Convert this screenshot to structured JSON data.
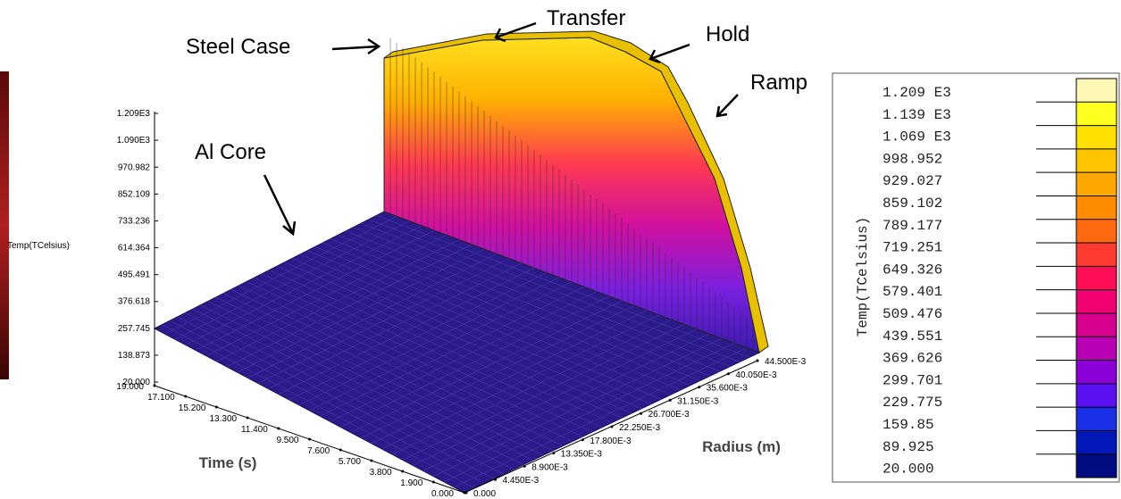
{
  "chart_data": {
    "type": "surface3d",
    "annotations": [
      "Steel Case",
      "Transfer",
      "Hold",
      "Ramp",
      "Al Core"
    ],
    "z_axis": {
      "label": "Temp(TCelsius)",
      "lim": [
        20,
        1209
      ],
      "ticks": [
        {
          "value": 1209,
          "label": "1.209E3"
        },
        {
          "value": 1090,
          "label": "1.090E3"
        },
        970.982,
        852.109,
        733.236,
        614.364,
        495.491,
        376.618,
        257.745,
        138.873,
        {
          "value": 20,
          "label": "20.000"
        }
      ]
    },
    "time_axis": {
      "label": "Time (s)",
      "lim": [
        0,
        19
      ],
      "ticks": [
        {
          "value": 19,
          "label": "19.000"
        },
        {
          "value": 17.1,
          "label": "17.100"
        },
        {
          "value": 15.2,
          "label": "15.200"
        },
        {
          "value": 13.3,
          "label": "13.300"
        },
        {
          "value": 11.4,
          "label": "11.400"
        },
        {
          "value": 9.5,
          "label": "9.500"
        },
        {
          "value": 7.6,
          "label": "7.600"
        },
        {
          "value": 5.7,
          "label": "5.700"
        },
        {
          "value": 3.8,
          "label": "3.800"
        },
        {
          "value": 1.9,
          "label": "1.900"
        },
        {
          "value": 0,
          "label": "0.000"
        }
      ]
    },
    "radius_axis": {
      "label": "Radius (m)",
      "lim": [
        0,
        0.0445
      ],
      "ticks": [
        {
          "value": 0,
          "label": "0.000"
        },
        {
          "value": 0.00445,
          "label": "4.450E-3"
        },
        {
          "value": 0.0089,
          "label": "8.900E-3"
        },
        {
          "value": 0.01335,
          "label": "13.350E-3"
        },
        {
          "value": 0.0178,
          "label": "17.800E-3"
        },
        {
          "value": 0.02225,
          "label": "22.250E-3"
        },
        {
          "value": 0.0267,
          "label": "26.700E-3"
        },
        {
          "value": 0.03115,
          "label": "31.150E-3"
        },
        {
          "value": 0.0356,
          "label": "35.600E-3"
        },
        {
          "value": 0.04005,
          "label": "40.050E-3"
        },
        {
          "value": 0.0445,
          "label": "44.500E-3"
        }
      ]
    },
    "colorbar": {
      "label": "Temp(TCelsius)",
      "levels": [
        {
          "value": 1209,
          "label": "1.209 E3"
        },
        {
          "value": 1139,
          "label": "1.139 E3"
        },
        {
          "value": 1069,
          "label": "1.069 E3"
        },
        998.952,
        929.027,
        859.102,
        789.177,
        719.251,
        649.326,
        579.401,
        509.476,
        439.551,
        369.626,
        299.701,
        229.775,
        159.85,
        89.925,
        {
          "value": 20,
          "label": "20.000"
        }
      ],
      "colors": [
        "#fff7b5",
        "#ffff20",
        "#ffe000",
        "#ffc400",
        "#ffa800",
        "#ff8c00",
        "#ff6a10",
        "#ff3a30",
        "#ff0d55",
        "#f00070",
        "#d8008e",
        "#b800b4",
        "#8c00d8",
        "#5a10f0",
        "#1a30e8",
        "#0018b8",
        "#000c80"
      ]
    }
  }
}
